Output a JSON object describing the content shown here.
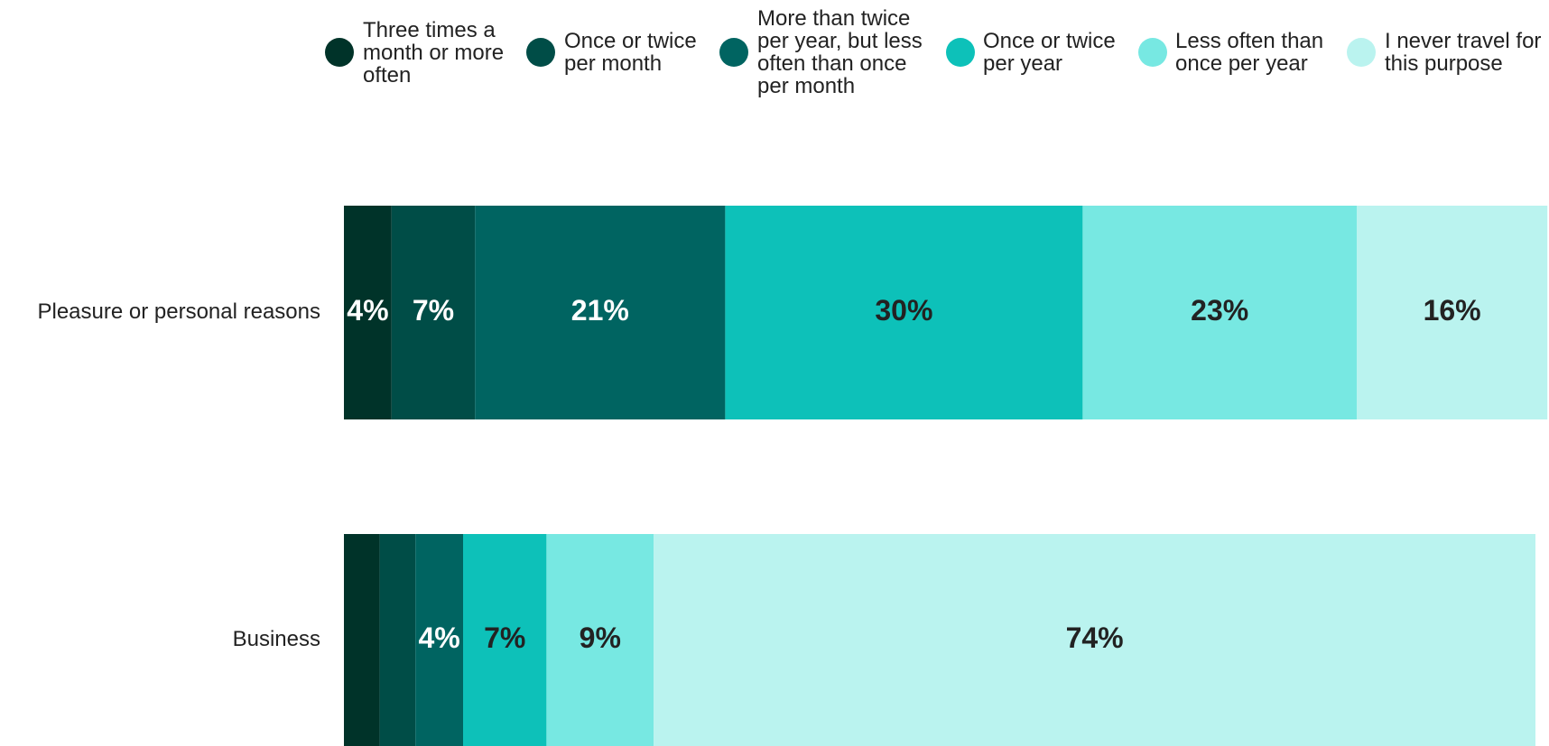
{
  "chart_data": {
    "type": "stacked_bar_horizontal",
    "categories": [
      "Pleasure or personal reasons",
      "Business"
    ],
    "series": [
      {
        "name": "Three times a month or more often",
        "color": "#003329",
        "values": [
          4,
          3
        ],
        "value_labels": [
          "4%",
          null
        ]
      },
      {
        "name": "Once or twice per month",
        "color": "#004d47",
        "values": [
          7,
          3
        ],
        "value_labels": [
          "7%",
          null
        ]
      },
      {
        "name": "More than twice per year, but less often than once per month",
        "color": "#006461",
        "values": [
          21,
          4
        ],
        "value_labels": [
          "21%",
          "4%"
        ]
      },
      {
        "name": "Once or twice per year",
        "color": "#0dc1b9",
        "values": [
          30,
          7
        ],
        "value_labels": [
          "30%",
          "7%"
        ]
      },
      {
        "name": "Less often than once per year",
        "color": "#77e8e2",
        "values": [
          23,
          9
        ],
        "value_labels": [
          "23%",
          "9%"
        ]
      },
      {
        "name": "I never travel for this purpose",
        "color": "#baf3ef",
        "values": [
          16,
          74
        ],
        "value_labels": [
          "16%",
          "74%"
        ]
      }
    ],
    "xlim": [
      0,
      100
    ]
  }
}
